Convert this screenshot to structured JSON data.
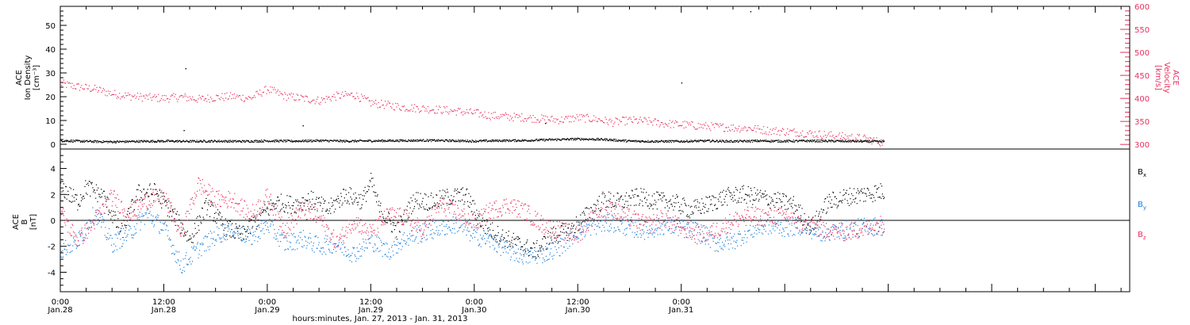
{
  "chart_data": [
    {
      "type": "scatter",
      "panel": "top",
      "ylabel_left": [
        "ACE",
        "Ion Density",
        "[cm⁻³]"
      ],
      "ylabel_right": [
        "ACE",
        "Velocity",
        "[km/s]"
      ],
      "ylim_left": [
        -2,
        58
      ],
      "yticks_left": [
        0,
        10,
        20,
        30,
        40,
        50
      ],
      "ylim_right": [
        290,
        600
      ],
      "yticks_right": [
        300,
        350,
        400,
        450,
        500,
        550,
        600
      ],
      "x_hours_range": [
        0,
        96
      ],
      "colors": {
        "density": "#000000",
        "velocity": "#e8305f"
      },
      "series": [
        {
          "axis": "left",
          "color": "#000000",
          "points": [
            [
              0,
              1.5
            ],
            [
              3,
              1.2
            ],
            [
              6,
              1.0
            ],
            [
              9,
              1.2
            ],
            [
              12,
              1.3
            ],
            [
              15,
              1.2
            ],
            [
              18,
              1.3
            ],
            [
              21,
              1.2
            ],
            [
              24,
              1.4
            ],
            [
              27,
              1.3
            ],
            [
              30,
              1.5
            ],
            [
              33,
              1.3
            ],
            [
              36,
              1.4
            ],
            [
              39,
              1.5
            ],
            [
              42,
              1.6
            ],
            [
              45,
              1.5
            ],
            [
              48,
              1.3
            ],
            [
              51,
              1.5
            ],
            [
              54,
              1.6
            ],
            [
              57,
              1.9
            ],
            [
              60,
              2.2
            ],
            [
              63,
              2.0
            ],
            [
              66,
              1.3
            ],
            [
              69,
              1.2
            ],
            [
              72,
              1.2
            ],
            [
              75,
              1.4
            ],
            [
              78,
              1.2
            ],
            [
              81,
              1.4
            ],
            [
              84,
              1.3
            ],
            [
              87,
              1.4
            ],
            [
              90,
              1.3
            ],
            [
              93,
              1.2
            ],
            [
              95,
              1.1
            ]
          ],
          "outliers": [
            [
              14.5,
              32
            ],
            [
              14.3,
              6
            ],
            [
              28.1,
              8
            ],
            [
              56.2,
              9
            ],
            [
              72,
              26
            ],
            [
              80,
              56
            ]
          ]
        },
        {
          "axis": "right",
          "color": "#e8305f",
          "points": [
            [
              0,
              432
            ],
            [
              2,
              425
            ],
            [
              4,
              420
            ],
            [
              6,
              410
            ],
            [
              8,
              405
            ],
            [
              10,
              402
            ],
            [
              12,
              400
            ],
            [
              14,
              403
            ],
            [
              16,
              398
            ],
            [
              18,
              402
            ],
            [
              20,
              404
            ],
            [
              22,
              400
            ],
            [
              24,
              420
            ],
            [
              26,
              405
            ],
            [
              28,
              400
            ],
            [
              30,
              395
            ],
            [
              32,
              405
            ],
            [
              34,
              408
            ],
            [
              36,
              390
            ],
            [
              38,
              385
            ],
            [
              40,
              380
            ],
            [
              42,
              378
            ],
            [
              44,
              375
            ],
            [
              46,
              372
            ],
            [
              48,
              368
            ],
            [
              50,
              362
            ],
            [
              52,
              360
            ],
            [
              54,
              358
            ],
            [
              56,
              355
            ],
            [
              58,
              353
            ],
            [
              60,
              358
            ],
            [
              62,
              355
            ],
            [
              64,
              348
            ],
            [
              66,
              352
            ],
            [
              68,
              350
            ],
            [
              70,
              345
            ],
            [
              72,
              343
            ],
            [
              74,
              340
            ],
            [
              76,
              338
            ],
            [
              78,
              336
            ],
            [
              80,
              335
            ],
            [
              82,
              330
            ],
            [
              84,
              328
            ],
            [
              86,
              325
            ],
            [
              88,
              322
            ],
            [
              90,
              318
            ],
            [
              92,
              315
            ],
            [
              94,
              310
            ],
            [
              95,
              305
            ]
          ]
        }
      ]
    },
    {
      "type": "scatter",
      "panel": "bottom",
      "ylabel": [
        "ACE",
        "B",
        "[nT]"
      ],
      "ylim": [
        -5.5,
        5.5
      ],
      "yticks": [
        -4,
        -2,
        0,
        2,
        4
      ],
      "x_hours_range": [
        0,
        96
      ],
      "zero_line": true,
      "legend": {
        "placement": "right",
        "entries": [
          "B",
          "B",
          "B"
        ],
        "subscripts": [
          "x",
          "y",
          "z"
        ]
      },
      "series": [
        {
          "name": "B",
          "subscript": "x",
          "color": "#000000",
          "points": [
            [
              0,
              2.6
            ],
            [
              2,
              1.4
            ],
            [
              3,
              2.6
            ],
            [
              5,
              1.8
            ],
            [
              7,
              -1.0
            ],
            [
              9,
              2.1
            ],
            [
              11,
              2.2
            ],
            [
              13,
              0.5
            ],
            [
              15,
              -1.5
            ],
            [
              17,
              1.2
            ],
            [
              19,
              -0.5
            ],
            [
              21,
              -1.2
            ],
            [
              23,
              0.2
            ],
            [
              25,
              1.4
            ],
            [
              27,
              1.2
            ],
            [
              29,
              1.6
            ],
            [
              31,
              0.8
            ],
            [
              33,
              2.0
            ],
            [
              35,
              1.5
            ],
            [
              36,
              3.0
            ],
            [
              37,
              0.8
            ],
            [
              39,
              -0.8
            ],
            [
              41,
              1.6
            ],
            [
              43,
              1.4
            ],
            [
              45,
              1.8
            ],
            [
              47,
              1.9
            ],
            [
              49,
              -0.4
            ],
            [
              51,
              -1.2
            ],
            [
              53,
              -1.8
            ],
            [
              55,
              -2.4
            ],
            [
              57,
              -1.2
            ],
            [
              59,
              -0.8
            ],
            [
              61,
              0.4
            ],
            [
              63,
              1.6
            ],
            [
              65,
              1.4
            ],
            [
              67,
              1.8
            ],
            [
              69,
              1.5
            ],
            [
              71,
              1.4
            ],
            [
              73,
              0.8
            ],
            [
              75,
              1.2
            ],
            [
              77,
              1.8
            ],
            [
              79,
              2.0
            ],
            [
              81,
              1.8
            ],
            [
              83,
              1.5
            ],
            [
              85,
              1.2
            ],
            [
              87,
              -0.6
            ],
            [
              89,
              1.4
            ],
            [
              91,
              1.8
            ],
            [
              93,
              2.0
            ],
            [
              95,
              2.2
            ]
          ]
        },
        {
          "name": "B",
          "subscript": "y",
          "color": "#1c7fdc",
          "points": [
            [
              0,
              -2.3
            ],
            [
              2,
              -1.6
            ],
            [
              4,
              0.6
            ],
            [
              6,
              -1.8
            ],
            [
              8,
              -1.0
            ],
            [
              10,
              0.5
            ],
            [
              12,
              -0.6
            ],
            [
              14,
              -3.5
            ],
            [
              16,
              -2.2
            ],
            [
              18,
              -1.2
            ],
            [
              20,
              -0.6
            ],
            [
              22,
              -1.4
            ],
            [
              24,
              -0.3
            ],
            [
              26,
              -1.8
            ],
            [
              28,
              -1.4
            ],
            [
              30,
              -2.0
            ],
            [
              32,
              -1.8
            ],
            [
              34,
              -2.6
            ],
            [
              36,
              -1.6
            ],
            [
              38,
              -2.4
            ],
            [
              40,
              -1.4
            ],
            [
              42,
              -1.0
            ],
            [
              44,
              -0.6
            ],
            [
              46,
              -0.3
            ],
            [
              48,
              -1.2
            ],
            [
              50,
              -1.6
            ],
            [
              52,
              -2.4
            ],
            [
              54,
              -2.8
            ],
            [
              56,
              -2.6
            ],
            [
              58,
              -2.0
            ],
            [
              60,
              -0.8
            ],
            [
              62,
              -0.4
            ],
            [
              64,
              -0.2
            ],
            [
              66,
              -0.6
            ],
            [
              68,
              -0.8
            ],
            [
              70,
              -0.4
            ],
            [
              72,
              -0.6
            ],
            [
              74,
              -0.8
            ],
            [
              76,
              -1.8
            ],
            [
              78,
              -1.6
            ],
            [
              80,
              -0.8
            ],
            [
              82,
              -0.4
            ],
            [
              84,
              -0.6
            ],
            [
              86,
              -0.4
            ],
            [
              88,
              -1.0
            ],
            [
              90,
              -0.8
            ],
            [
              92,
              -0.6
            ],
            [
              94,
              -0.4
            ],
            [
              95,
              -0.5
            ]
          ]
        },
        {
          "name": "B",
          "subscript": "z",
          "color": "#e8305f",
          "points": [
            [
              0,
              0.6
            ],
            [
              2,
              -1.6
            ],
            [
              4,
              0.0
            ],
            [
              6,
              1.8
            ],
            [
              8,
              0.4
            ],
            [
              10,
              1.6
            ],
            [
              12,
              1.8
            ],
            [
              14,
              -1.0
            ],
            [
              16,
              2.8
            ],
            [
              18,
              1.6
            ],
            [
              20,
              1.6
            ],
            [
              22,
              0.4
            ],
            [
              24,
              1.8
            ],
            [
              26,
              -0.6
            ],
            [
              28,
              0.8
            ],
            [
              30,
              0.2
            ],
            [
              32,
              -1.8
            ],
            [
              34,
              0.0
            ],
            [
              36,
              -1.0
            ],
            [
              38,
              0.4
            ],
            [
              40,
              0.2
            ],
            [
              42,
              -0.8
            ],
            [
              44,
              1.2
            ],
            [
              46,
              0.6
            ],
            [
              48,
              -0.2
            ],
            [
              50,
              0.8
            ],
            [
              52,
              1.2
            ],
            [
              54,
              0.6
            ],
            [
              56,
              -0.4
            ],
            [
              58,
              -0.8
            ],
            [
              60,
              -1.2
            ],
            [
              62,
              0.6
            ],
            [
              64,
              0.8
            ],
            [
              66,
              0.2
            ],
            [
              68,
              -0.4
            ],
            [
              70,
              0.2
            ],
            [
              72,
              -0.6
            ],
            [
              74,
              -1.2
            ],
            [
              76,
              -0.8
            ],
            [
              78,
              0.0
            ],
            [
              80,
              0.4
            ],
            [
              82,
              0.2
            ],
            [
              84,
              0.4
            ],
            [
              86,
              -0.4
            ],
            [
              88,
              -0.6
            ],
            [
              90,
              -1.0
            ],
            [
              92,
              -0.8
            ],
            [
              94,
              -0.6
            ],
            [
              95,
              -0.3
            ]
          ]
        }
      ]
    }
  ],
  "x_axis": {
    "ticks": [
      {
        "hours": 0,
        "time": "0:00",
        "date": "Jan.28"
      },
      {
        "hours": 12,
        "time": "12:00",
        "date": "Jan.28"
      },
      {
        "hours": 24,
        "time": "0:00",
        "date": "Jan.29"
      },
      {
        "hours": 36,
        "time": "12:00",
        "date": "Jan.29"
      },
      {
        "hours": 48,
        "time": "0:00",
        "date": "Jan.30"
      },
      {
        "hours": 60,
        "time": "12:00",
        "date": "Jan.30"
      },
      {
        "hours": 72,
        "time": "0:00",
        "date": "Jan.31"
      }
    ],
    "label": "hours:minutes, Jan. 27, 2013 - Jan. 31, 2013"
  }
}
